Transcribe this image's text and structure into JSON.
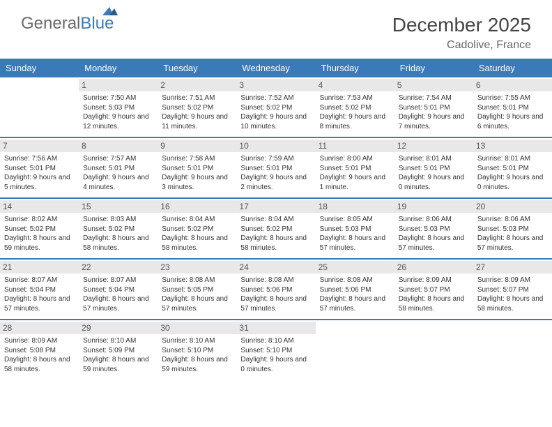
{
  "logo": {
    "general": "General",
    "blue": "Blue"
  },
  "title": "December 2025",
  "location": "Cadolive, France",
  "colors": {
    "header_bg": "#3a7ab8",
    "header_text": "#ffffff",
    "daynum_bg": "#e8e8e8",
    "body_text": "#333333",
    "row_divider": "#3a7ab8",
    "logo_gray": "#6a6a6a",
    "logo_blue": "#3a7ab8"
  },
  "weekdays": [
    "Sunday",
    "Monday",
    "Tuesday",
    "Wednesday",
    "Thursday",
    "Friday",
    "Saturday"
  ],
  "weeks": [
    [
      {
        "n": "",
        "t": ""
      },
      {
        "n": "1",
        "t": "Sunrise: 7:50 AM\nSunset: 5:03 PM\nDaylight: 9 hours and 12 minutes."
      },
      {
        "n": "2",
        "t": "Sunrise: 7:51 AM\nSunset: 5:02 PM\nDaylight: 9 hours and 11 minutes."
      },
      {
        "n": "3",
        "t": "Sunrise: 7:52 AM\nSunset: 5:02 PM\nDaylight: 9 hours and 10 minutes."
      },
      {
        "n": "4",
        "t": "Sunrise: 7:53 AM\nSunset: 5:02 PM\nDaylight: 9 hours and 8 minutes."
      },
      {
        "n": "5",
        "t": "Sunrise: 7:54 AM\nSunset: 5:01 PM\nDaylight: 9 hours and 7 minutes."
      },
      {
        "n": "6",
        "t": "Sunrise: 7:55 AM\nSunset: 5:01 PM\nDaylight: 9 hours and 6 minutes."
      }
    ],
    [
      {
        "n": "7",
        "t": "Sunrise: 7:56 AM\nSunset: 5:01 PM\nDaylight: 9 hours and 5 minutes."
      },
      {
        "n": "8",
        "t": "Sunrise: 7:57 AM\nSunset: 5:01 PM\nDaylight: 9 hours and 4 minutes."
      },
      {
        "n": "9",
        "t": "Sunrise: 7:58 AM\nSunset: 5:01 PM\nDaylight: 9 hours and 3 minutes."
      },
      {
        "n": "10",
        "t": "Sunrise: 7:59 AM\nSunset: 5:01 PM\nDaylight: 9 hours and 2 minutes."
      },
      {
        "n": "11",
        "t": "Sunrise: 8:00 AM\nSunset: 5:01 PM\nDaylight: 9 hours and 1 minute."
      },
      {
        "n": "12",
        "t": "Sunrise: 8:01 AM\nSunset: 5:01 PM\nDaylight: 9 hours and 0 minutes."
      },
      {
        "n": "13",
        "t": "Sunrise: 8:01 AM\nSunset: 5:01 PM\nDaylight: 9 hours and 0 minutes."
      }
    ],
    [
      {
        "n": "14",
        "t": "Sunrise: 8:02 AM\nSunset: 5:02 PM\nDaylight: 8 hours and 59 minutes."
      },
      {
        "n": "15",
        "t": "Sunrise: 8:03 AM\nSunset: 5:02 PM\nDaylight: 8 hours and 58 minutes."
      },
      {
        "n": "16",
        "t": "Sunrise: 8:04 AM\nSunset: 5:02 PM\nDaylight: 8 hours and 58 minutes."
      },
      {
        "n": "17",
        "t": "Sunrise: 8:04 AM\nSunset: 5:02 PM\nDaylight: 8 hours and 58 minutes."
      },
      {
        "n": "18",
        "t": "Sunrise: 8:05 AM\nSunset: 5:03 PM\nDaylight: 8 hours and 57 minutes."
      },
      {
        "n": "19",
        "t": "Sunrise: 8:06 AM\nSunset: 5:03 PM\nDaylight: 8 hours and 57 minutes."
      },
      {
        "n": "20",
        "t": "Sunrise: 8:06 AM\nSunset: 5:03 PM\nDaylight: 8 hours and 57 minutes."
      }
    ],
    [
      {
        "n": "21",
        "t": "Sunrise: 8:07 AM\nSunset: 5:04 PM\nDaylight: 8 hours and 57 minutes."
      },
      {
        "n": "22",
        "t": "Sunrise: 8:07 AM\nSunset: 5:04 PM\nDaylight: 8 hours and 57 minutes."
      },
      {
        "n": "23",
        "t": "Sunrise: 8:08 AM\nSunset: 5:05 PM\nDaylight: 8 hours and 57 minutes."
      },
      {
        "n": "24",
        "t": "Sunrise: 8:08 AM\nSunset: 5:06 PM\nDaylight: 8 hours and 57 minutes."
      },
      {
        "n": "25",
        "t": "Sunrise: 8:08 AM\nSunset: 5:06 PM\nDaylight: 8 hours and 57 minutes."
      },
      {
        "n": "26",
        "t": "Sunrise: 8:09 AM\nSunset: 5:07 PM\nDaylight: 8 hours and 58 minutes."
      },
      {
        "n": "27",
        "t": "Sunrise: 8:09 AM\nSunset: 5:07 PM\nDaylight: 8 hours and 58 minutes."
      }
    ],
    [
      {
        "n": "28",
        "t": "Sunrise: 8:09 AM\nSunset: 5:08 PM\nDaylight: 8 hours and 58 minutes."
      },
      {
        "n": "29",
        "t": "Sunrise: 8:10 AM\nSunset: 5:09 PM\nDaylight: 8 hours and 59 minutes."
      },
      {
        "n": "30",
        "t": "Sunrise: 8:10 AM\nSunset: 5:10 PM\nDaylight: 8 hours and 59 minutes."
      },
      {
        "n": "31",
        "t": "Sunrise: 8:10 AM\nSunset: 5:10 PM\nDaylight: 9 hours and 0 minutes."
      },
      {
        "n": "",
        "t": ""
      },
      {
        "n": "",
        "t": ""
      },
      {
        "n": "",
        "t": ""
      }
    ]
  ]
}
